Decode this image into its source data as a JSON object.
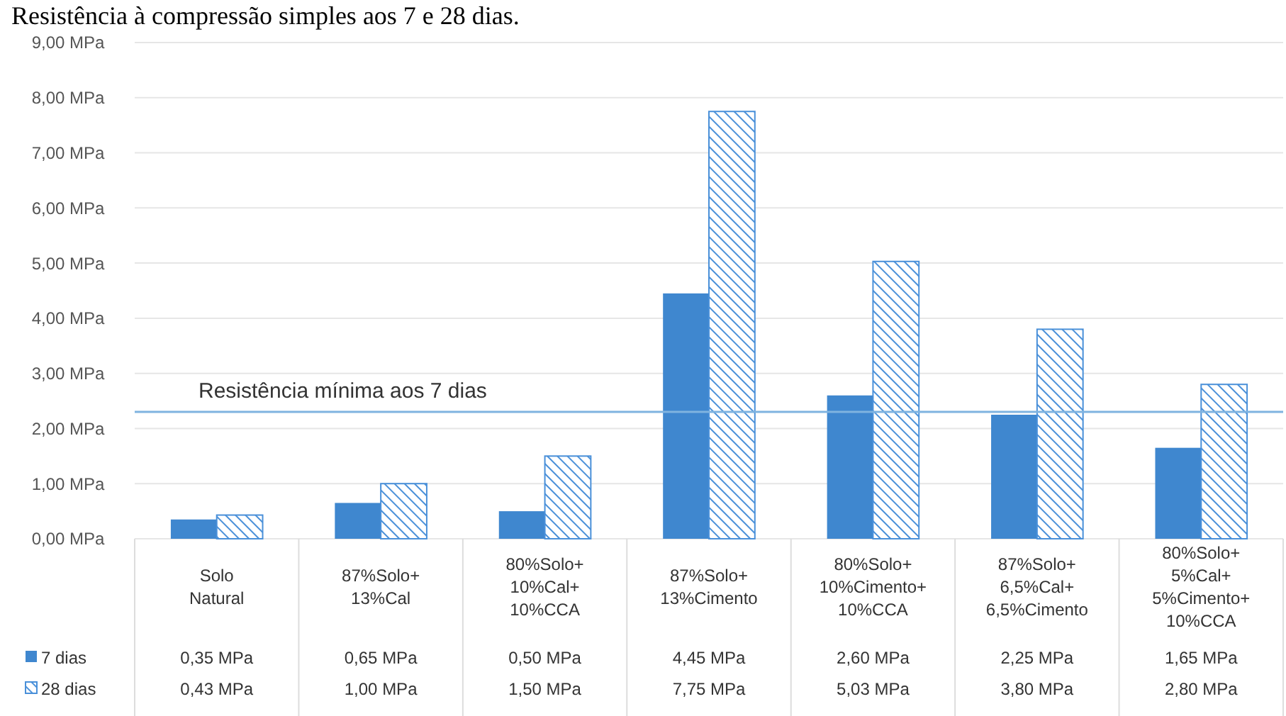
{
  "chart_data": {
    "type": "bar",
    "title": "Resistência à compressão simples aos 7 e 28 dias.",
    "categories": [
      "Solo Natural",
      "87%Solo+ 13%Cal",
      "80%Solo+ 10%Cal+ 10%CCA",
      "87%Solo+ 13%Cimento",
      "80%Solo+ 10%Cimento+ 10%CCA",
      "87%Solo+ 6,5%Cal+ 6,5%Cimento",
      "80%Solo+ 5%Cal+ 5%Cimento+ 10%CCA"
    ],
    "series": [
      {
        "name": "7 dias",
        "color": "#3f87cf",
        "values": [
          0.35,
          0.65,
          0.5,
          4.45,
          2.6,
          2.25,
          1.65
        ],
        "value_labels": [
          "0,35 MPa",
          "0,65 MPa",
          "0,50 MPa",
          "4,45 MPa",
          "2,60 MPa",
          "2,25 MPa",
          "1,65 MPa"
        ]
      },
      {
        "name": "28 dias",
        "color": "#4a90d9",
        "values": [
          0.43,
          1.0,
          1.5,
          7.75,
          5.03,
          3.8,
          2.8
        ],
        "value_labels": [
          "0,43 MPa",
          "1,00 MPa",
          "1,50 MPa",
          "7,75 MPa",
          "5,03 MPa",
          "3,80 MPa",
          "2,80 MPa"
        ]
      }
    ],
    "ylim": [
      0,
      9
    ],
    "yticks": [
      {
        "value": 0,
        "label": "0,00 MPa"
      },
      {
        "value": 1,
        "label": "1,00 MPa"
      },
      {
        "value": 2,
        "label": "2,00 MPa"
      },
      {
        "value": 3,
        "label": "3,00 MPa"
      },
      {
        "value": 4,
        "label": "4,00 MPa"
      },
      {
        "value": 5,
        "label": "5,00 MPa"
      },
      {
        "value": 6,
        "label": "6,00 MPa"
      },
      {
        "value": 7,
        "label": "7,00 MPa"
      },
      {
        "value": 8,
        "label": "8,00 MPa"
      },
      {
        "value": 9,
        "label": "9,00 MPa"
      }
    ],
    "grid": "y",
    "legend": "bottom",
    "ref_lines": [
      {
        "axis": "y",
        "value": 2.3,
        "label": "Resistência mínima aos 7 dias",
        "color": "#7fb3e0"
      }
    ]
  }
}
